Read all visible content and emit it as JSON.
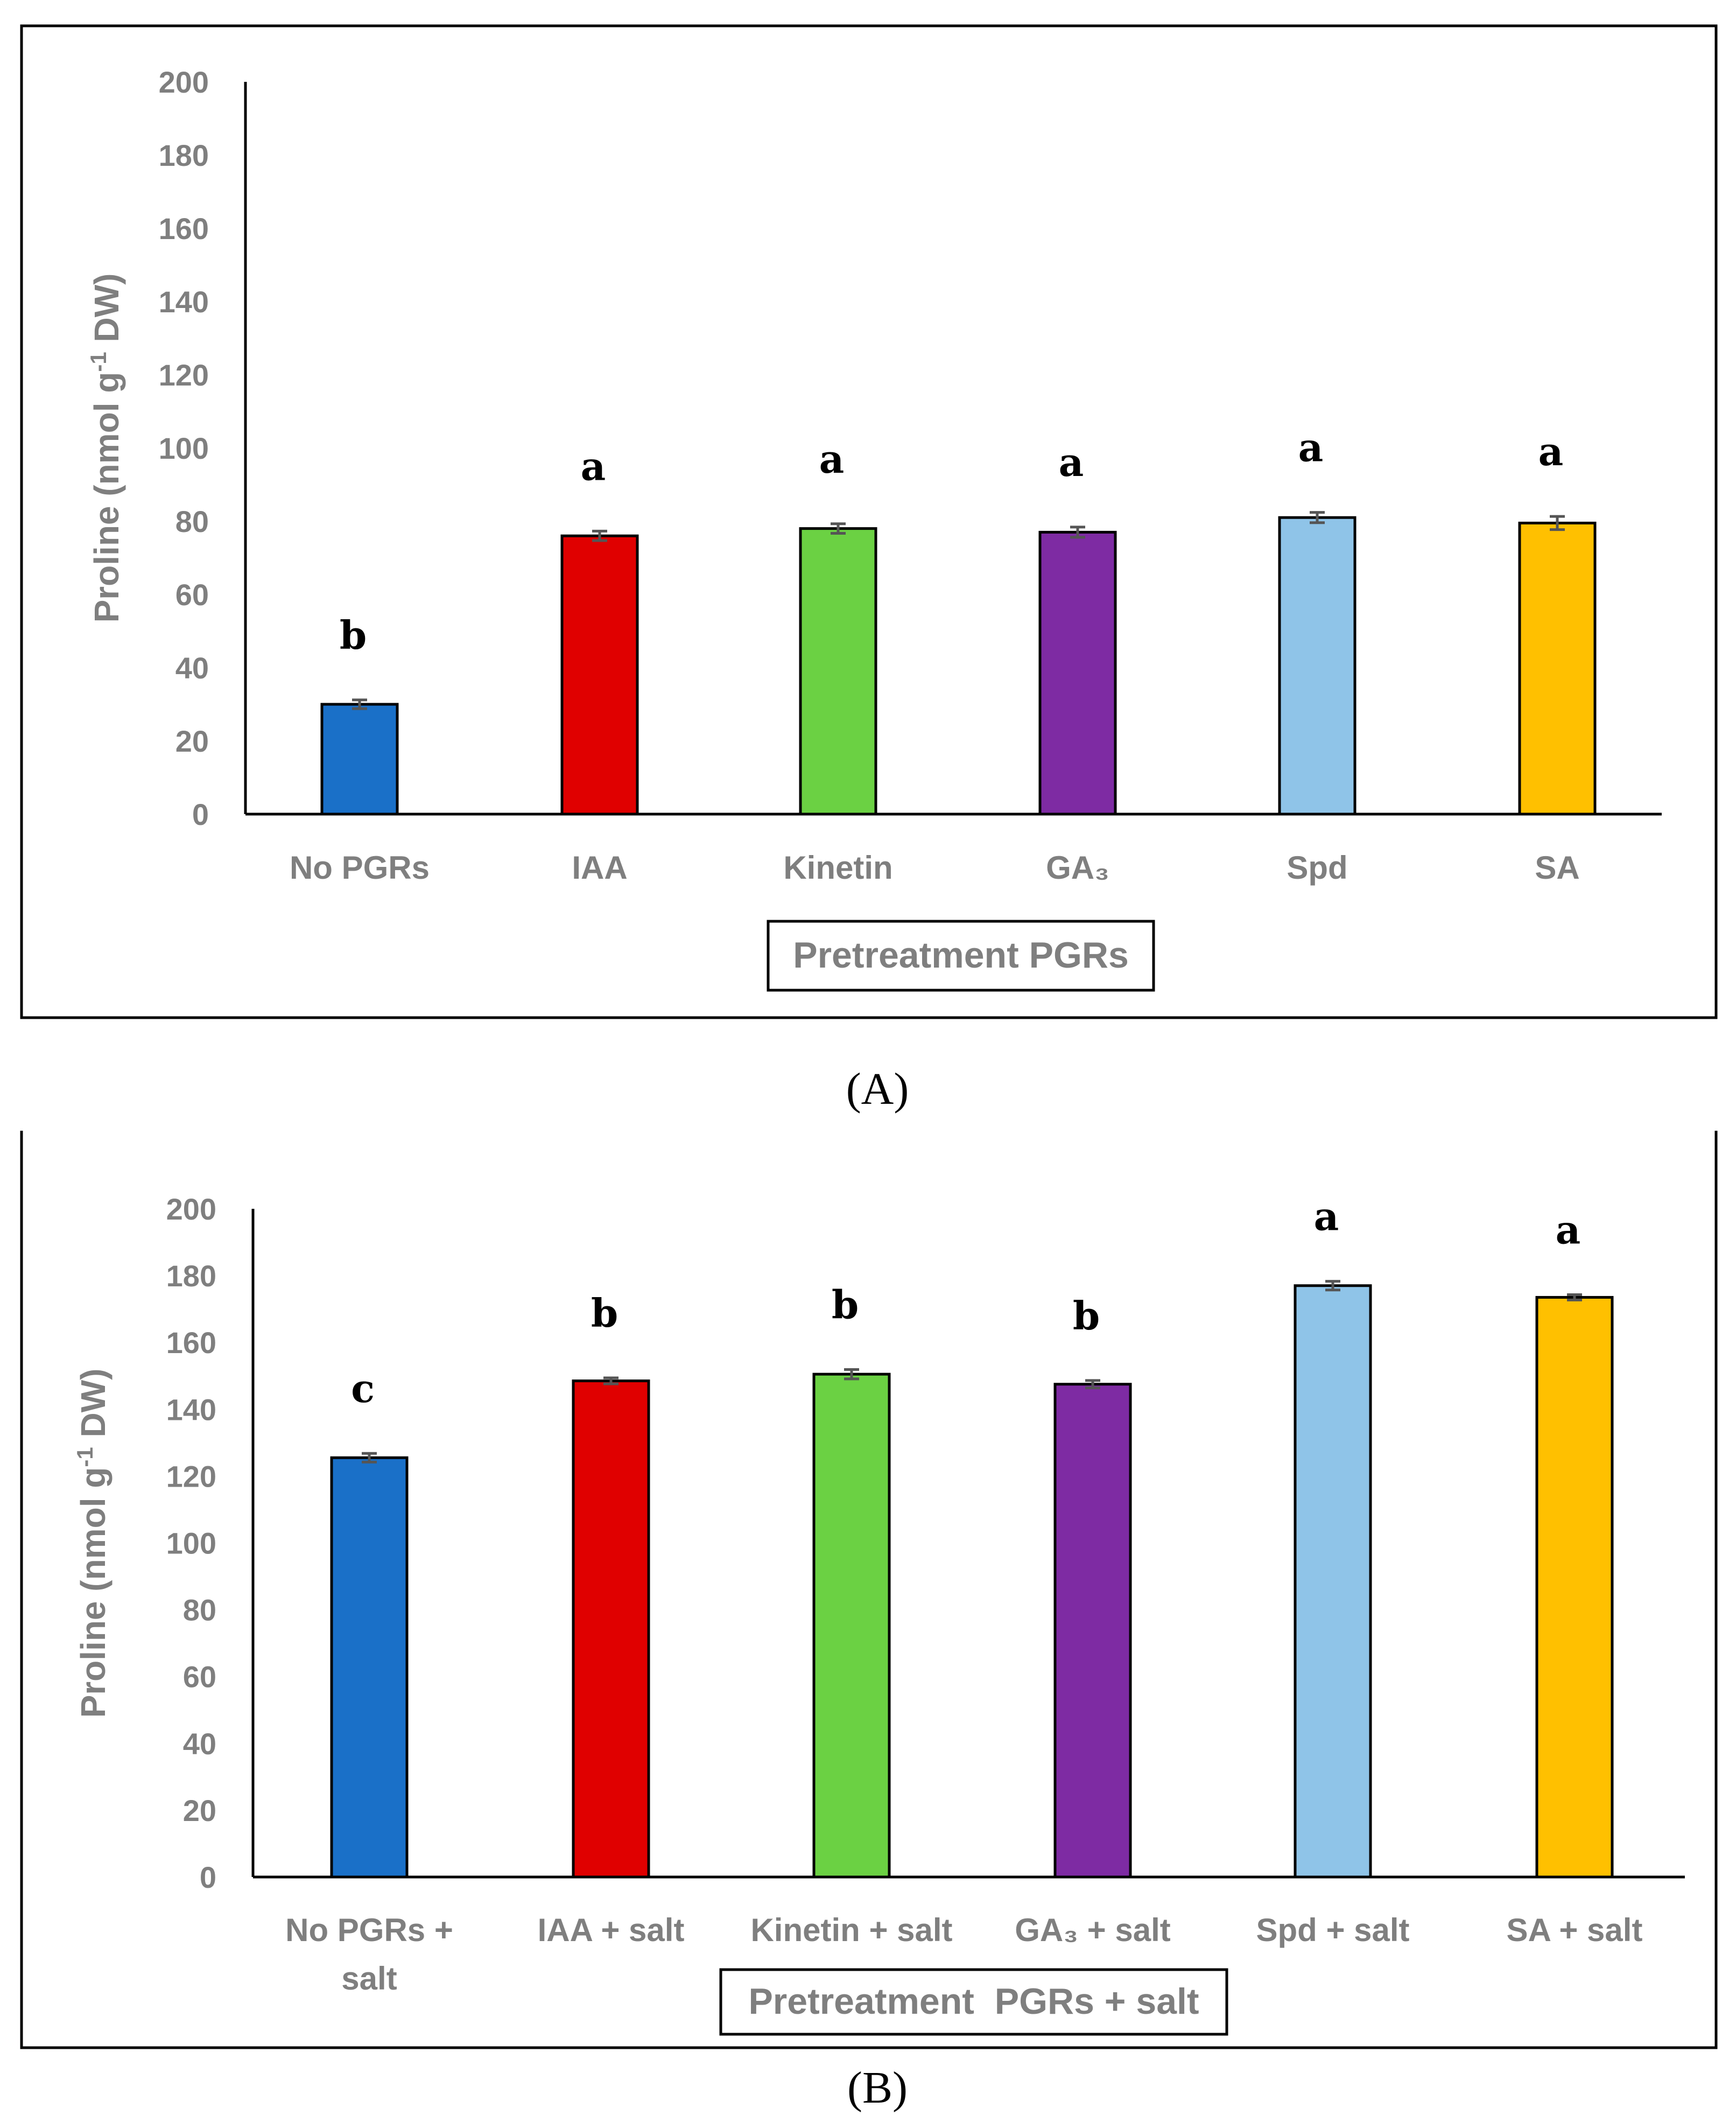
{
  "chart_data": [
    {
      "type": "bar",
      "panel_label": "(A)",
      "categories": [
        "No PGRs",
        "IAA",
        "Kinetin",
        "GA3",
        "Spd",
        "SA"
      ],
      "category_labels": [
        [
          "No PGRs"
        ],
        [
          "IAA"
        ],
        [
          "Kinetin"
        ],
        [
          "GA₃"
        ],
        [
          "Spd"
        ],
        [
          "SA"
        ]
      ],
      "values": [
        30,
        76,
        78,
        77,
        81,
        79.5
      ],
      "errors": [
        1.2,
        1.3,
        1.3,
        1.4,
        1.4,
        1.8
      ],
      "significance_letters": [
        "b",
        "a",
        "a",
        "a",
        "a",
        "a"
      ],
      "colors": [
        "#1a70c8",
        "#e00000",
        "#6bd143",
        "#7e2ba3",
        "#8fc4e8",
        "#ffc000"
      ],
      "ylabel": "Proline (nmol g-1 DW)",
      "ylabel_main": "Proline (nmol g",
      "ylabel_sup": "-1",
      "ylabel_end": " DW)",
      "xlabel": "Pretreatment PGRs",
      "ylim": [
        0,
        200
      ],
      "yticks": [
        0,
        20,
        40,
        60,
        80,
        100,
        120,
        140,
        160,
        180,
        200
      ],
      "grid": false
    },
    {
      "type": "bar",
      "panel_label": "(B)",
      "categories": [
        "No PGRs + salt",
        "IAA + salt",
        "Kinetin + salt",
        "GA3 + salt",
        "Spd + salt",
        "SA + salt"
      ],
      "category_labels": [
        [
          "No PGRs +",
          "salt"
        ],
        [
          "IAA + salt"
        ],
        [
          "Kinetin + salt"
        ],
        [
          "GA₃ + salt"
        ],
        [
          "Spd + salt"
        ],
        [
          "SA + salt"
        ]
      ],
      "values": [
        125.5,
        148.5,
        150.5,
        147.5,
        177,
        173.5
      ],
      "errors": [
        1.3,
        0.9,
        1.4,
        1.1,
        1.3,
        0.8
      ],
      "significance_letters": [
        "c",
        "b",
        "b",
        "b",
        "a",
        "a"
      ],
      "colors": [
        "#1a70c8",
        "#e00000",
        "#6bd143",
        "#7e2ba3",
        "#8fc4e8",
        "#ffc000"
      ],
      "ylabel": "Proline (nmol g-1 DW)",
      "ylabel_main": "Proline (nmol g",
      "ylabel_sup": "-1",
      "ylabel_end": " DW)",
      "xlabel": "Pretreatment  PGRs + salt",
      "ylim": [
        0,
        200
      ],
      "yticks": [
        0,
        20,
        40,
        60,
        80,
        100,
        120,
        140,
        160,
        180,
        200
      ],
      "grid": false
    }
  ]
}
